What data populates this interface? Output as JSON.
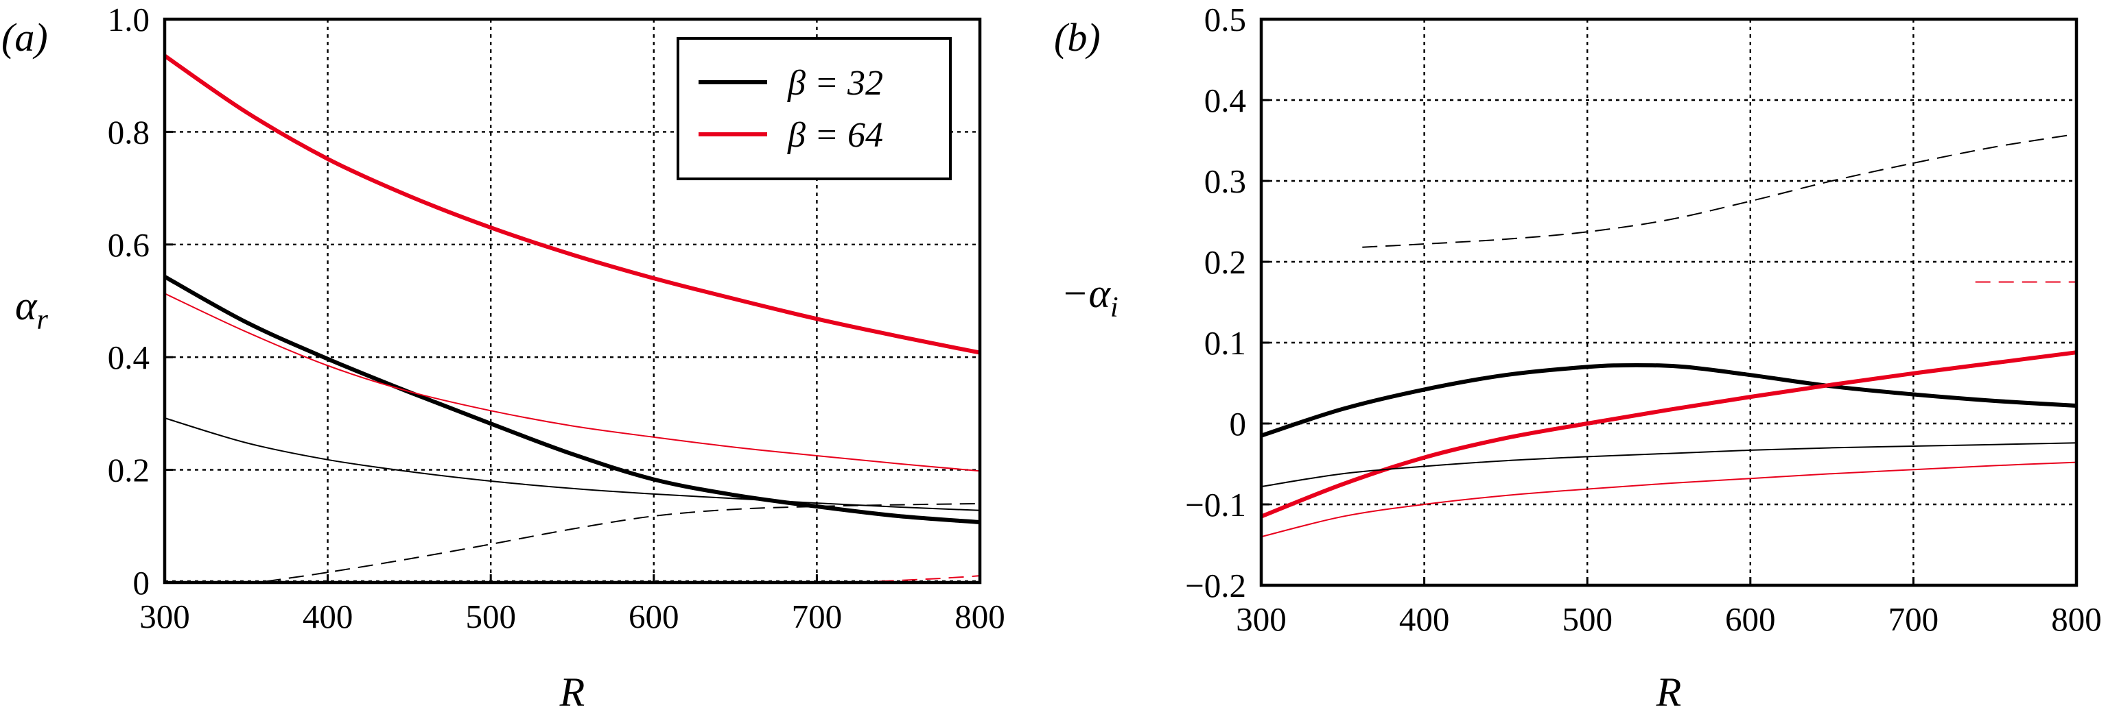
{
  "colors": {
    "black": "#000000",
    "red": "#e8001c"
  },
  "chart_data": [
    {
      "type": "line",
      "panel_label": "(a)",
      "xlabel": "R",
      "ylabel": "α_r",
      "xlim": [
        300,
        800
      ],
      "ylim": [
        0,
        1.0
      ],
      "xticks": [
        "300",
        "400",
        "500",
        "600",
        "700",
        "800"
      ],
      "yticks": [
        "0",
        "0.2",
        "0.4",
        "0.6",
        "0.8",
        "1.0"
      ],
      "grid": true,
      "legend": {
        "placement": "top-right",
        "entries": [
          {
            "label": "β = 32",
            "color": "#000000"
          },
          {
            "label": "β = 64",
            "color": "#e8001c"
          }
        ]
      },
      "series": [
        {
          "color": "#e8001c",
          "weight": "thick",
          "style": "solid",
          "x": [
            300,
            350,
            400,
            450,
            500,
            550,
            600,
            650,
            700,
            750,
            800
          ],
          "y": [
            0.935,
            0.835,
            0.752,
            0.686,
            0.63,
            0.582,
            0.54,
            0.503,
            0.468,
            0.437,
            0.408
          ]
        },
        {
          "color": "#000000",
          "weight": "thick",
          "style": "solid",
          "x": [
            300,
            350,
            400,
            450,
            500,
            550,
            600,
            650,
            700,
            750,
            800
          ],
          "y": [
            0.543,
            0.462,
            0.397,
            0.338,
            0.282,
            0.228,
            0.183,
            0.155,
            0.135,
            0.118,
            0.107
          ]
        },
        {
          "color": "#e8001c",
          "weight": "thin",
          "style": "solid",
          "x": [
            300,
            350,
            400,
            450,
            500,
            550,
            600,
            650,
            700,
            750,
            800
          ],
          "y": [
            0.513,
            0.445,
            0.385,
            0.339,
            0.305,
            0.278,
            0.258,
            0.24,
            0.225,
            0.211,
            0.198
          ]
        },
        {
          "color": "#000000",
          "weight": "thin",
          "style": "solid",
          "x": [
            300,
            350,
            400,
            450,
            500,
            550,
            600,
            650,
            700,
            750,
            800
          ],
          "y": [
            0.292,
            0.248,
            0.218,
            0.197,
            0.18,
            0.167,
            0.157,
            0.149,
            0.141,
            0.134,
            0.128
          ]
        },
        {
          "color": "#000000",
          "weight": "thin",
          "style": "dashed",
          "x": [
            362,
            400,
            450,
            500,
            550,
            600,
            650,
            700,
            750,
            800
          ],
          "y": [
            0.002,
            0.018,
            0.042,
            0.068,
            0.095,
            0.118,
            0.13,
            0.135,
            0.138,
            0.14
          ]
        },
        {
          "color": "#e8001c",
          "weight": "thin",
          "style": "dashed",
          "x": [
            738,
            760,
            780,
            800
          ],
          "y": [
            0.002,
            0.005,
            0.008,
            0.012
          ]
        }
      ]
    },
    {
      "type": "line",
      "panel_label": "(b)",
      "xlabel": "R",
      "ylabel": "−α_i",
      "xlim": [
        300,
        800
      ],
      "ylim": [
        -0.2,
        0.5
      ],
      "xticks": [
        "300",
        "400",
        "500",
        "600",
        "700",
        "800"
      ],
      "yticks": [
        "−0.2",
        "−0.1",
        "0",
        "0.1",
        "0.2",
        "0.3",
        "0.4",
        "0.5"
      ],
      "grid": true,
      "series": [
        {
          "color": "#000000",
          "weight": "thick",
          "style": "solid",
          "x": [
            300,
            350,
            400,
            450,
            500,
            530,
            560,
            600,
            650,
            700,
            750,
            800
          ],
          "y": [
            -0.015,
            0.018,
            0.042,
            0.06,
            0.07,
            0.072,
            0.07,
            0.06,
            0.046,
            0.036,
            0.028,
            0.022
          ]
        },
        {
          "color": "#e8001c",
          "weight": "thick",
          "style": "solid",
          "x": [
            300,
            350,
            400,
            450,
            500,
            550,
            600,
            650,
            700,
            750,
            800
          ],
          "y": [
            -0.115,
            -0.075,
            -0.042,
            -0.018,
            0.0,
            0.017,
            0.033,
            0.048,
            0.062,
            0.075,
            0.088
          ]
        },
        {
          "color": "#000000",
          "weight": "thin",
          "style": "solid",
          "x": [
            300,
            350,
            400,
            450,
            500,
            550,
            600,
            650,
            700,
            750,
            800
          ],
          "y": [
            -0.078,
            -0.062,
            -0.053,
            -0.046,
            -0.041,
            -0.037,
            -0.033,
            -0.03,
            -0.028,
            -0.026,
            -0.024
          ]
        },
        {
          "color": "#e8001c",
          "weight": "thin",
          "style": "solid",
          "x": [
            300,
            350,
            400,
            450,
            500,
            550,
            600,
            650,
            700,
            750,
            800
          ],
          "y": [
            -0.14,
            -0.115,
            -0.1,
            -0.089,
            -0.081,
            -0.074,
            -0.068,
            -0.062,
            -0.057,
            -0.052,
            -0.048
          ]
        },
        {
          "color": "#000000",
          "weight": "thin",
          "style": "dashed",
          "x": [
            362,
            400,
            450,
            500,
            550,
            600,
            650,
            700,
            750,
            800
          ],
          "y": [
            0.218,
            0.222,
            0.228,
            0.237,
            0.252,
            0.275,
            0.3,
            0.322,
            0.342,
            0.358
          ]
        },
        {
          "color": "#e8001c",
          "weight": "thin",
          "style": "dashed",
          "x": [
            738,
            770,
            800
          ],
          "y": [
            0.175,
            0.175,
            0.175
          ]
        }
      ]
    }
  ]
}
